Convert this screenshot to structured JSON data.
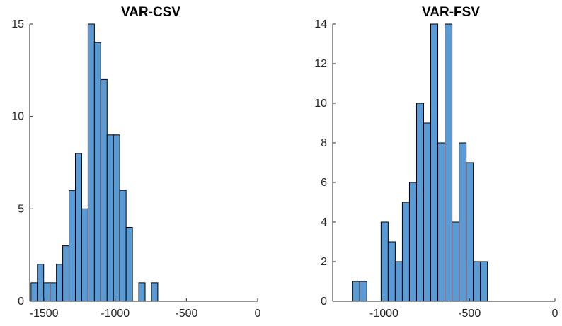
{
  "chart_data": [
    {
      "type": "bar",
      "title": "VAR-CSV",
      "xlim": [
        -1600,
        0
      ],
      "ylim": [
        0,
        15
      ],
      "xticks": [
        -1500,
        -1000,
        -500,
        0
      ],
      "xtick_labels": [
        "-1500",
        "-1000",
        "-500",
        "0"
      ],
      "yticks": [
        0,
        5,
        10,
        15
      ],
      "ytick_labels": [
        "0",
        "5",
        "10",
        "15"
      ],
      "grid": false,
      "bin_width": 44.5,
      "bins": [
        {
          "x0": -1591,
          "count": 1
        },
        {
          "x0": -1546.5,
          "count": 2
        },
        {
          "x0": -1502,
          "count": 1
        },
        {
          "x0": -1457.5,
          "count": 1
        },
        {
          "x0": -1413,
          "count": 2
        },
        {
          "x0": -1368.5,
          "count": 3
        },
        {
          "x0": -1324,
          "count": 6
        },
        {
          "x0": -1279.5,
          "count": 8
        },
        {
          "x0": -1235,
          "count": 5
        },
        {
          "x0": -1190.5,
          "count": 15
        },
        {
          "x0": -1146,
          "count": 14
        },
        {
          "x0": -1101.5,
          "count": 12
        },
        {
          "x0": -1057,
          "count": 9
        },
        {
          "x0": -1012.5,
          "count": 9
        },
        {
          "x0": -968,
          "count": 6
        },
        {
          "x0": -923.5,
          "count": 4
        },
        {
          "x0": -879,
          "count": 0
        },
        {
          "x0": -834.5,
          "count": 1
        },
        {
          "x0": -790,
          "count": 0
        },
        {
          "x0": -745.5,
          "count": 1
        }
      ]
    },
    {
      "type": "bar",
      "title": "VAR-FSV",
      "xlim": [
        -1300,
        0
      ],
      "ylim": [
        0,
        14
      ],
      "xticks": [
        -1000,
        -500,
        0
      ],
      "xtick_labels": [
        "-1000",
        "-500",
        "0"
      ],
      "yticks": [
        0,
        2,
        4,
        6,
        8,
        10,
        12,
        14
      ],
      "ytick_labels": [
        "0",
        "2",
        "4",
        "6",
        "8",
        "10",
        "12",
        "14"
      ],
      "grid": false,
      "bin_width": 41.5,
      "bins": [
        {
          "x0": -1183,
          "count": 1
        },
        {
          "x0": -1141.5,
          "count": 1
        },
        {
          "x0": -1100,
          "count": 0
        },
        {
          "x0": -1058.5,
          "count": 0
        },
        {
          "x0": -1017,
          "count": 4
        },
        {
          "x0": -975.5,
          "count": 3
        },
        {
          "x0": -934,
          "count": 2
        },
        {
          "x0": -892.5,
          "count": 5
        },
        {
          "x0": -851,
          "count": 6
        },
        {
          "x0": -809.5,
          "count": 10
        },
        {
          "x0": -768,
          "count": 9
        },
        {
          "x0": -726.5,
          "count": 14
        },
        {
          "x0": -685,
          "count": 8
        },
        {
          "x0": -643.5,
          "count": 14
        },
        {
          "x0": -602,
          "count": 4
        },
        {
          "x0": -560.5,
          "count": 8
        },
        {
          "x0": -519,
          "count": 7
        },
        {
          "x0": -477.5,
          "count": 2
        },
        {
          "x0": -436,
          "count": 2
        }
      ]
    }
  ]
}
